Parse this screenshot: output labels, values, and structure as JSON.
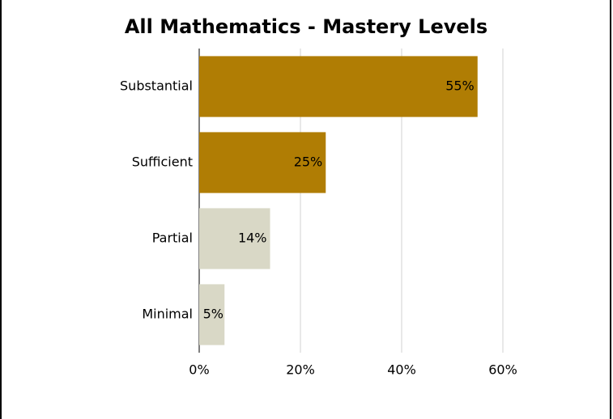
{
  "chart_data": {
    "type": "bar",
    "orientation": "horizontal",
    "title": "All Mathematics - Mastery Levels",
    "categories": [
      "Substantial",
      "Sufficient",
      "Partial",
      "Minimal"
    ],
    "values": [
      55,
      25,
      14,
      5
    ],
    "value_labels": [
      "55%",
      "25%",
      "14%",
      "5%"
    ],
    "colors": [
      "#b07d04",
      "#b07d04",
      "#d9d8c6",
      "#d9d8c6"
    ],
    "xlim": [
      0,
      60
    ],
    "xticks": [
      {
        "value": 0,
        "label": "0%"
      },
      {
        "value": 20,
        "label": "20%"
      },
      {
        "value": 40,
        "label": "40%"
      },
      {
        "value": 60,
        "label": "60%"
      }
    ],
    "grid": true
  }
}
